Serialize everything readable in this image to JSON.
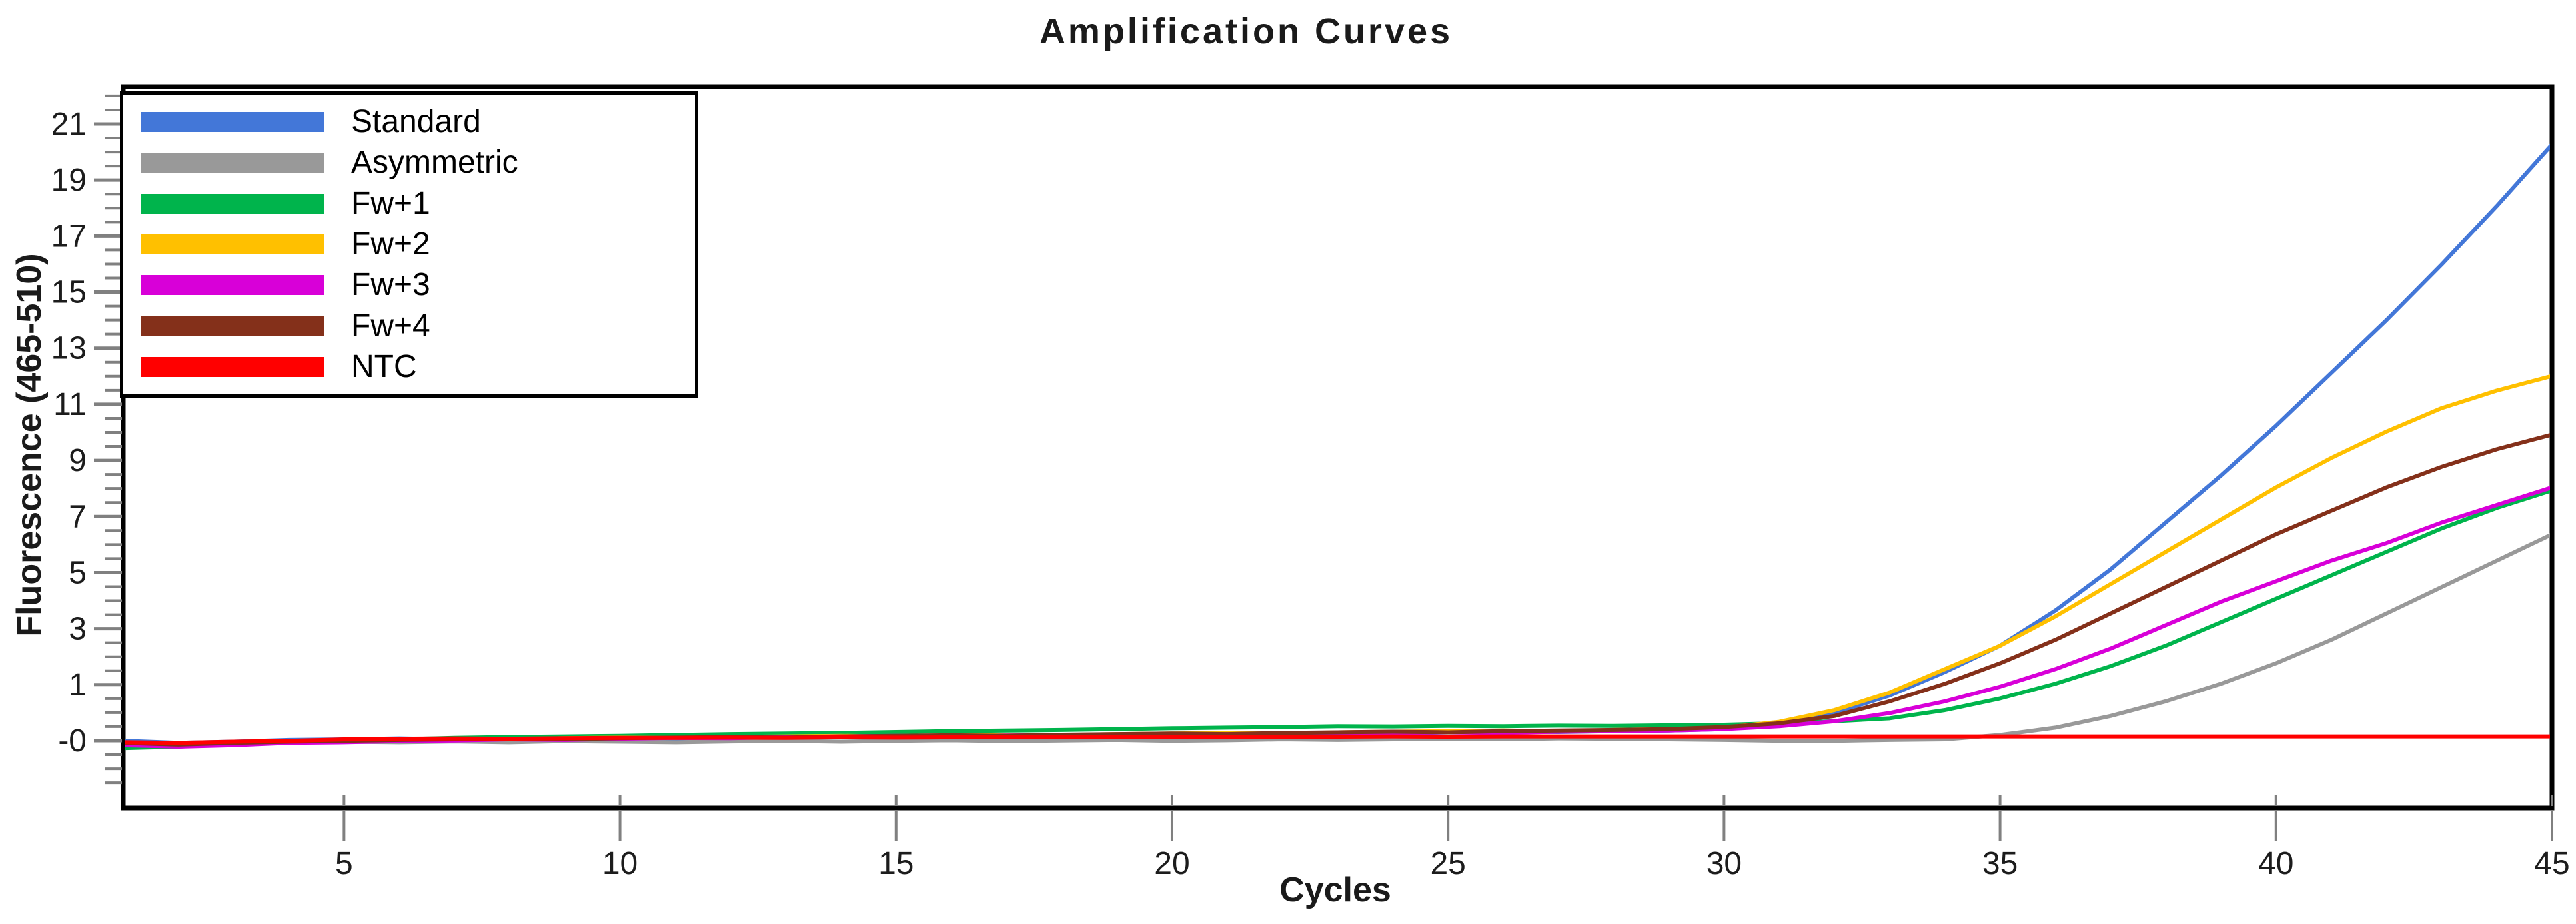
{
  "title": "Amplification Curves",
  "axes": {
    "y_label": "Fluorescence (465-510)",
    "x_label": "Cycles",
    "y_tick_labels": [
      "21",
      "19",
      "17",
      "15",
      "13",
      "11",
      "9",
      "7",
      "5",
      "3",
      "1",
      "-0"
    ],
    "x_tick_labels": [
      "5",
      "10",
      "15",
      "20",
      "25",
      "30",
      "35",
      "40",
      "45"
    ]
  },
  "chart_data": {
    "type": "line",
    "title": "Amplification Curves",
    "xlabel": "Cycles",
    "ylabel": "Fluorescence (465-510)",
    "x_range": [
      1,
      45
    ],
    "y_tick_values": [
      21,
      19,
      17,
      15,
      13,
      11,
      9,
      7,
      5,
      3,
      1,
      0
    ],
    "legend_position": "top-left",
    "grid": false,
    "x": [
      1,
      2,
      3,
      4,
      5,
      6,
      7,
      8,
      9,
      10,
      11,
      12,
      13,
      14,
      15,
      16,
      17,
      18,
      19,
      20,
      21,
      22,
      23,
      24,
      25,
      26,
      27,
      28,
      29,
      30,
      31,
      32,
      33,
      34,
      35,
      36,
      37,
      38,
      39,
      40,
      41,
      42,
      43,
      44,
      45
    ],
    "series": [
      {
        "name": "Standard",
        "color": "#4377d8",
        "values": [
          -0.05,
          -0.12,
          -0.08,
          -0.02,
          0.0,
          0.03,
          0.0,
          -0.04,
          0.02,
          0.05,
          0.03,
          0.06,
          0.1,
          0.08,
          0.12,
          0.1,
          0.14,
          0.12,
          0.15,
          0.18,
          0.16,
          0.2,
          0.22,
          0.2,
          0.24,
          0.26,
          0.25,
          0.28,
          0.3,
          0.35,
          0.55,
          0.9,
          1.5,
          2.3,
          3.2,
          4.4,
          5.8,
          7.4,
          9.0,
          10.7,
          12.5,
          14.3,
          16.2,
          18.2,
          20.3
        ]
      },
      {
        "name": "Asymmetric",
        "color": "#999999",
        "values": [
          -0.15,
          -0.2,
          -0.15,
          -0.1,
          -0.08,
          -0.1,
          -0.07,
          -0.1,
          -0.06,
          -0.08,
          -0.1,
          -0.07,
          -0.05,
          -0.08,
          -0.05,
          -0.03,
          -0.06,
          -0.04,
          -0.02,
          -0.05,
          -0.03,
          0.0,
          -0.02,
          0.0,
          0.02,
          0.0,
          0.03,
          0.02,
          0.0,
          -0.02,
          -0.05,
          -0.05,
          -0.02,
          0.0,
          0.15,
          0.4,
          0.8,
          1.3,
          1.9,
          2.6,
          3.4,
          4.3,
          5.2,
          6.1,
          7.0
        ]
      },
      {
        "name": "Fw+1",
        "color": "#00b44c",
        "values": [
          -0.3,
          -0.25,
          -0.15,
          -0.1,
          -0.05,
          0.0,
          0.05,
          0.08,
          0.1,
          0.12,
          0.15,
          0.18,
          0.2,
          0.22,
          0.25,
          0.28,
          0.3,
          0.32,
          0.35,
          0.38,
          0.4,
          0.42,
          0.45,
          0.44,
          0.46,
          0.45,
          0.47,
          0.46,
          0.48,
          0.5,
          0.55,
          0.62,
          0.72,
          1.0,
          1.4,
          1.9,
          2.5,
          3.2,
          4.0,
          4.8,
          5.6,
          6.4,
          7.2,
          7.9,
          8.5
        ]
      },
      {
        "name": "Fw+2",
        "color": "#ffc000",
        "values": [
          -0.1,
          -0.15,
          -0.1,
          -0.05,
          -0.02,
          0.0,
          0.02,
          0.0,
          0.04,
          0.06,
          0.05,
          0.08,
          0.1,
          0.12,
          0.1,
          0.14,
          0.16,
          0.15,
          0.18,
          0.2,
          0.22,
          0.2,
          0.24,
          0.26,
          0.28,
          0.3,
          0.28,
          0.32,
          0.35,
          0.4,
          0.6,
          1.0,
          1.6,
          2.4,
          3.2,
          4.2,
          5.3,
          6.4,
          7.5,
          8.6,
          9.6,
          10.5,
          11.3,
          11.9,
          12.4
        ]
      },
      {
        "name": "Fw+3",
        "color": "#d800d8",
        "values": [
          -0.2,
          -0.25,
          -0.2,
          -0.12,
          -0.1,
          -0.06,
          -0.04,
          0.0,
          -0.02,
          0.02,
          0.05,
          0.04,
          0.08,
          0.1,
          0.12,
          0.1,
          0.13,
          0.15,
          0.14,
          0.16,
          0.18,
          0.2,
          0.18,
          0.22,
          0.24,
          0.22,
          0.26,
          0.28,
          0.3,
          0.35,
          0.45,
          0.62,
          0.9,
          1.3,
          1.8,
          2.4,
          3.1,
          3.9,
          4.7,
          5.4,
          6.1,
          6.7,
          7.4,
          8.0,
          8.6
        ]
      },
      {
        "name": "Fw+4",
        "color": "#84301a",
        "values": [
          -0.12,
          -0.18,
          -0.12,
          -0.08,
          -0.05,
          -0.02,
          0.0,
          0.02,
          0.0,
          0.04,
          0.06,
          0.08,
          0.06,
          0.1,
          0.12,
          0.14,
          0.12,
          0.16,
          0.18,
          0.2,
          0.18,
          0.22,
          0.24,
          0.26,
          0.24,
          0.28,
          0.3,
          0.32,
          0.35,
          0.42,
          0.55,
          0.8,
          1.3,
          1.9,
          2.6,
          3.4,
          4.3,
          5.2,
          6.1,
          7.0,
          7.8,
          8.6,
          9.3,
          9.9,
          10.4
        ]
      },
      {
        "name": "NTC",
        "color": "#ff0000",
        "values": [
          -0.1,
          -0.12,
          -0.08,
          -0.05,
          0.0,
          0.02,
          0.03,
          0.02,
          0.04,
          0.05,
          0.05,
          0.06,
          0.05,
          0.07,
          0.06,
          0.07,
          0.08,
          0.07,
          0.08,
          0.08,
          0.09,
          0.08,
          0.09,
          0.1,
          0.09,
          0.1,
          0.1,
          0.1,
          0.1,
          0.1,
          0.1,
          0.1,
          0.1,
          0.1,
          0.1,
          0.1,
          0.1,
          0.1,
          0.1,
          0.1,
          0.1,
          0.1,
          0.1,
          0.1,
          0.1
        ]
      }
    ]
  },
  "colors": {
    "frame": "#000000",
    "tick": "#808080",
    "tick_label": "#1c1c1c"
  }
}
